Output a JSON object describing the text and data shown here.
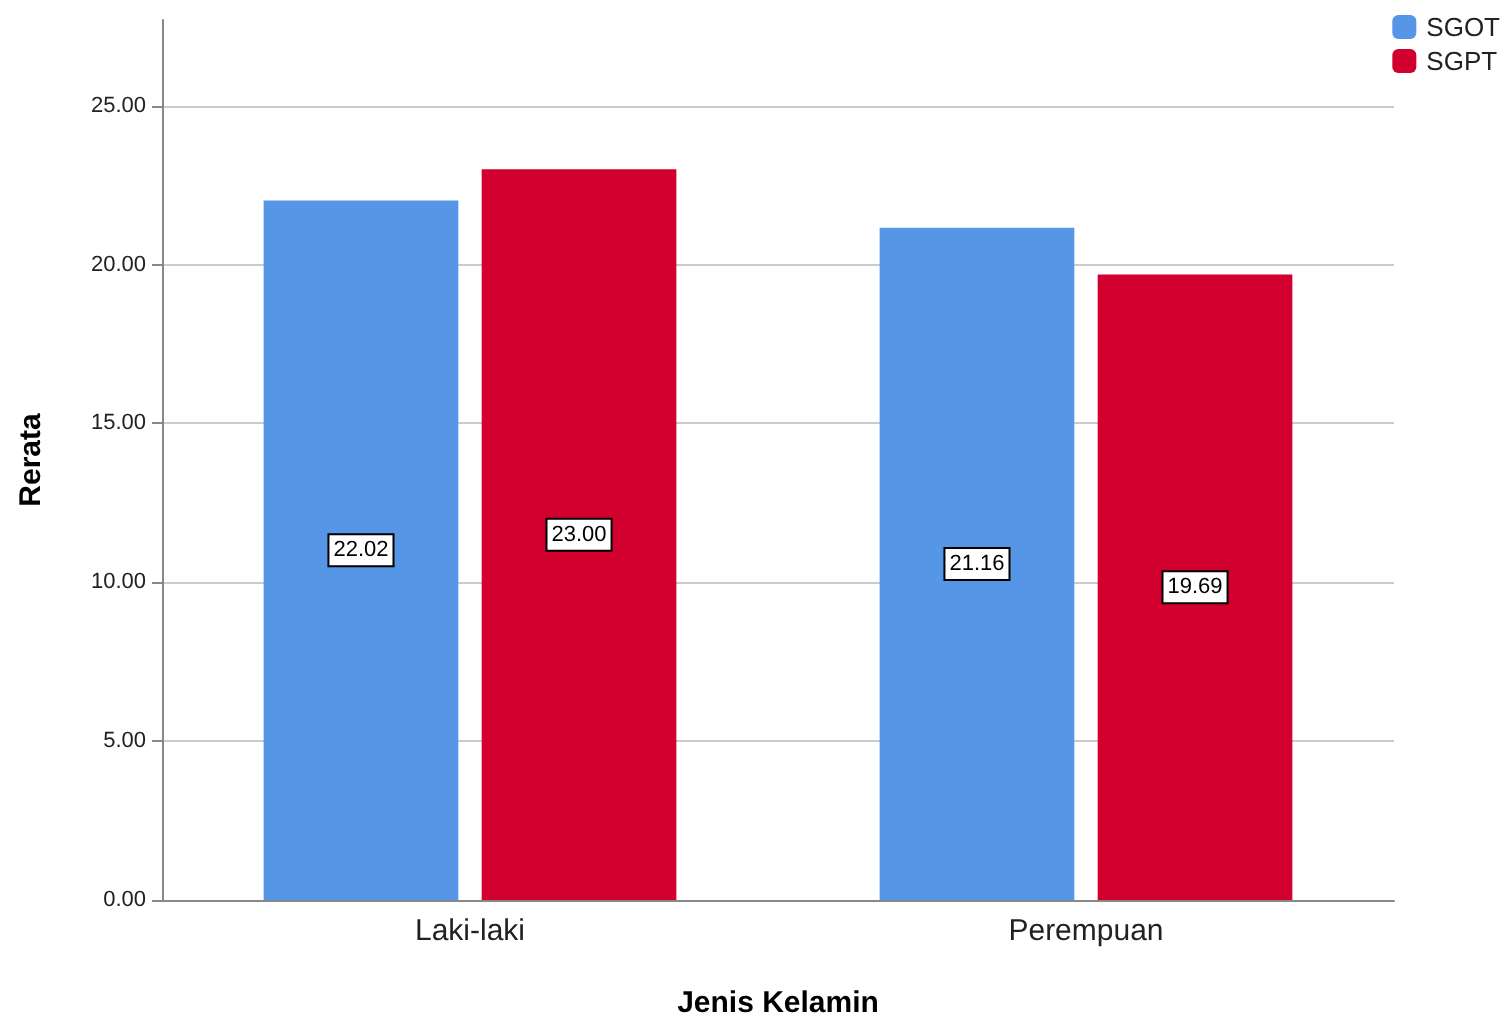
{
  "chart_data": {
    "type": "bar",
    "xlabel": "Jenis Kelamin",
    "ylabel": "Rerata",
    "categories": [
      "Laki-laki",
      "Perempuan"
    ],
    "series": [
      {
        "name": "SGOT",
        "color": "#5596e6",
        "values": [
          22.02,
          21.16
        ],
        "value_labels": [
          "22.02",
          "21.16"
        ]
      },
      {
        "name": "SGPT",
        "color": "#d2002f",
        "values": [
          23.0,
          19.69
        ],
        "value_labels": [
          "23.00",
          "19.69"
        ]
      }
    ],
    "ylim": [
      0,
      27.7
    ],
    "yticks": [
      {
        "value": 0,
        "label": "0.00"
      },
      {
        "value": 5,
        "label": "5.00"
      },
      {
        "value": 10,
        "label": "10.00"
      },
      {
        "value": 15,
        "label": "15.00"
      },
      {
        "value": 20,
        "label": "20.00"
      },
      {
        "value": 25,
        "label": "25.00"
      }
    ],
    "grid": "y",
    "legend": "top right"
  }
}
